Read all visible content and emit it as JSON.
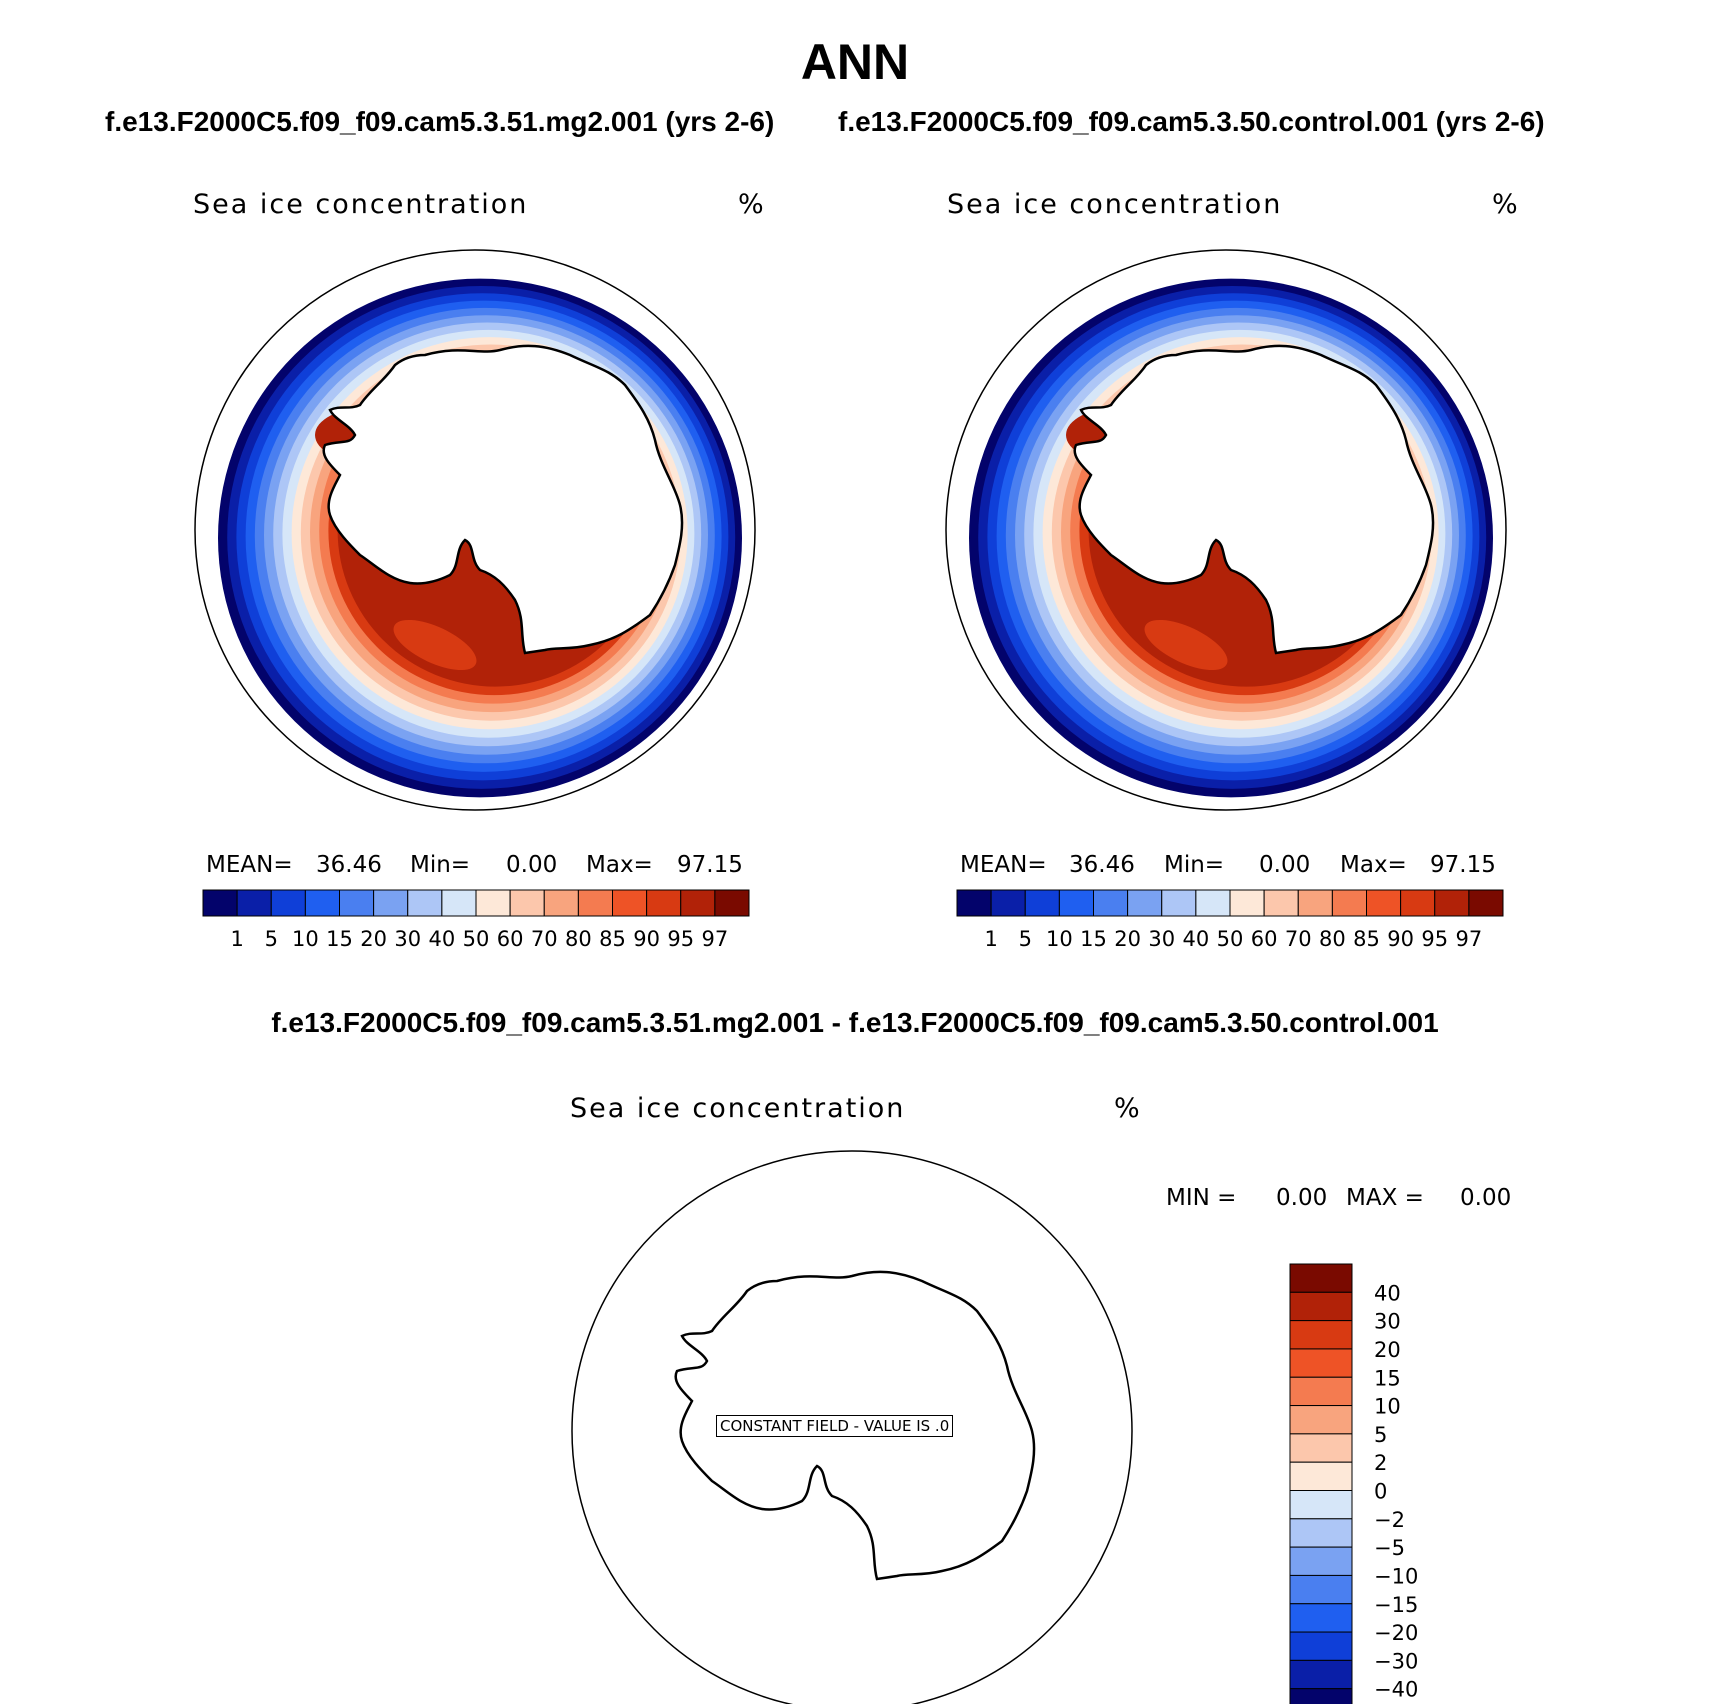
{
  "page": {
    "title": "ANN",
    "case_a_title": "f.e13.F2000C5.f09_f09.cam5.3.51.mg2.001 (yrs 2-6)",
    "case_b_title": "f.e13.F2000C5.f09_f09.cam5.3.50.control.001 (yrs 2-6)",
    "diff_title": "f.e13.F2000C5.f09_f09.cam5.3.51.mg2.001 - f.e13.F2000C5.f09_f09.cam5.3.50.control.001"
  },
  "panels": {
    "case_a": {
      "field": "Sea ice concentration",
      "units": "%",
      "mean_label": "MEAN=",
      "mean_value": "36.46",
      "min_label": "Min=",
      "min_value": "0.00",
      "max_label": "Max=",
      "max_value": "97.15"
    },
    "case_b": {
      "field": "Sea ice concentration",
      "units": "%",
      "mean_label": "MEAN=",
      "mean_value": "36.46",
      "min_label": "Min=",
      "min_value": "0.00",
      "max_label": "Max=",
      "max_value": "97.15"
    },
    "diff": {
      "field": "Sea ice concentration",
      "units": "%",
      "min_label": "MIN =",
      "min_value": "0.00",
      "max_label": "MAX =",
      "max_value": "0.00",
      "constant_field_note": "CONSTANT FIELD - VALUE IS .0"
    }
  },
  "colorbars": {
    "case_levels": [
      "1",
      "5",
      "10",
      "15",
      "20",
      "30",
      "40",
      "50",
      "60",
      "70",
      "80",
      "85",
      "90",
      "95",
      "97"
    ],
    "case_colors": [
      "#03036b",
      "#0a1fa8",
      "#0f3fd8",
      "#1f5ff0",
      "#4a7ff0",
      "#7aa2f2",
      "#adc6f6",
      "#d6e6f8",
      "#fde8d8",
      "#fcc7ac",
      "#f8a47e",
      "#f47b50",
      "#ee5326",
      "#d83a12",
      "#b12208",
      "#7a0a00"
    ],
    "diff_levels": [
      "40",
      "30",
      "20",
      "15",
      "10",
      "5",
      "2",
      "0",
      "−2",
      "−5",
      "−10",
      "−15",
      "−20",
      "−30",
      "−40"
    ],
    "diff_colors": [
      "#7a0a00",
      "#b12208",
      "#d83a12",
      "#ee5326",
      "#f47b50",
      "#f8a47e",
      "#fcc7ac",
      "#fde8d8",
      "#d6e6f8",
      "#adc6f6",
      "#7aa2f2",
      "#4a7ff0",
      "#1f5ff0",
      "#0f3fd8",
      "#0a1fa8",
      "#03036b"
    ]
  },
  "map_style": {
    "ocean_band_colors": [
      "#03036b",
      "#0a1fa8",
      "#0f3fd8",
      "#1f5ff0",
      "#4a7ff0",
      "#7aa2f2",
      "#adc6f6",
      "#d6e6f8",
      "#fde8d8",
      "#fcc7ac",
      "#f8a47e",
      "#f47b50",
      "#d83a12",
      "#b12208"
    ]
  }
}
